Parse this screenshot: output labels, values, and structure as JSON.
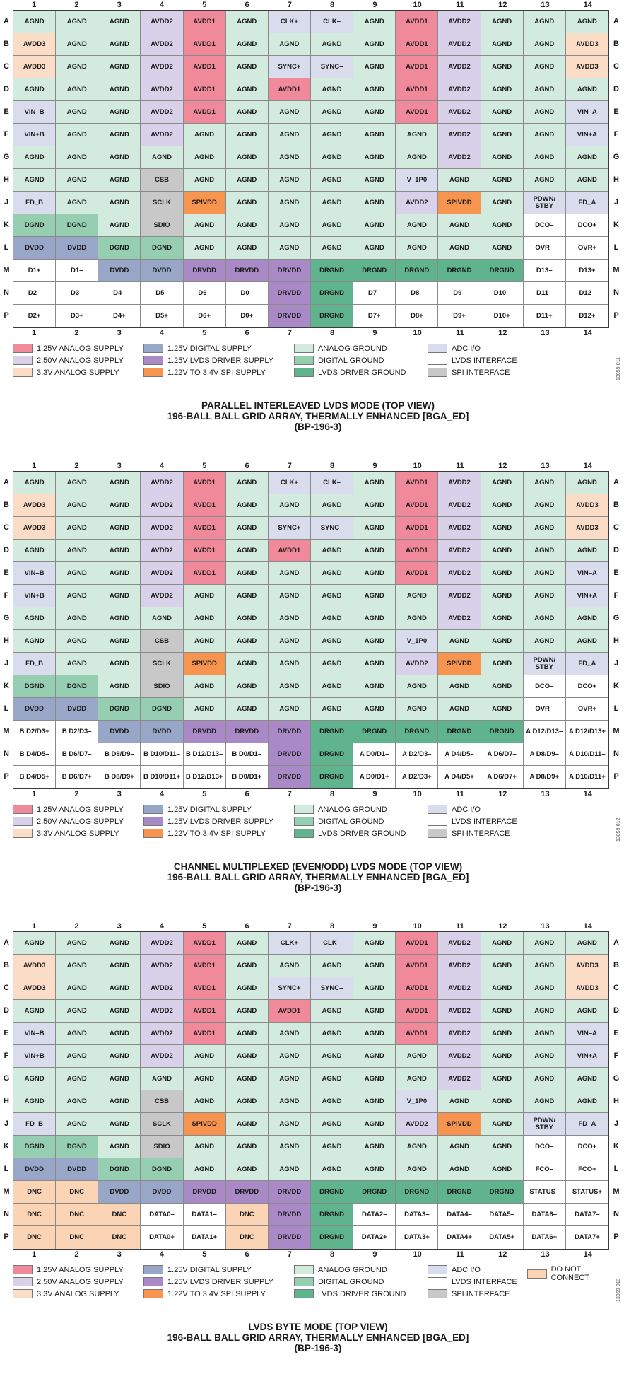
{
  "columns": [
    "1",
    "2",
    "3",
    "4",
    "5",
    "6",
    "7",
    "8",
    "9",
    "10",
    "11",
    "12",
    "13",
    "14"
  ],
  "rows": [
    "A",
    "B",
    "C",
    "D",
    "E",
    "F",
    "G",
    "H",
    "J",
    "K",
    "L",
    "M",
    "N",
    "P"
  ],
  "colors": {
    "A1": "#f08a9a",
    "A2": "#d9d0ea",
    "A3": "#fbdcc6",
    "D1": "#98a6c8",
    "D2": "#a98ac6",
    "SP": "#f7944f",
    "AG": "#d3ebde",
    "DG": "#96ceb2",
    "LG": "#5fb48d",
    "IO": "#d9dcec",
    "LV": "#ffffff",
    "SI": "#c8c8c8",
    "NC": "#fbd3b5"
  },
  "legend_items": [
    {
      "key": "A1",
      "label": "1.25V ANALOG SUPPLY"
    },
    {
      "key": "A2",
      "label": "2.50V ANALOG SUPPLY"
    },
    {
      "key": "A3",
      "label": "3.3V ANALOG SUPPLY"
    },
    {
      "key": "D1",
      "label": "1.25V DIGITAL SUPPLY"
    },
    {
      "key": "D2",
      "label": "1.25V LVDS DRIVER SUPPLY"
    },
    {
      "key": "SP",
      "label": "1.22V TO 3.4V SPI SUPPLY"
    },
    {
      "key": "AG",
      "label": "ANALOG GROUND"
    },
    {
      "key": "DG",
      "label": "DIGITAL GROUND"
    },
    {
      "key": "LG",
      "label": "LVDS DRIVER GROUND"
    },
    {
      "key": "IO",
      "label": "ADC I/O"
    },
    {
      "key": "LV",
      "label": "LVDS INTERFACE"
    },
    {
      "key": "SI",
      "label": "SPI INTERFACE"
    },
    {
      "key": "NC",
      "label": "DO NOT CONNECT"
    }
  ],
  "common_rows": [
    [
      [
        "AGND",
        "AG"
      ],
      [
        "AGND",
        "AG"
      ],
      [
        "AGND",
        "AG"
      ],
      [
        "AVDD2",
        "A2"
      ],
      [
        "AVDD1",
        "A1"
      ],
      [
        "AGND",
        "AG"
      ],
      [
        "CLK+",
        "IO"
      ],
      [
        "CLK–",
        "IO"
      ],
      [
        "AGND",
        "AG"
      ],
      [
        "AVDD1",
        "A1"
      ],
      [
        "AVDD2",
        "A2"
      ],
      [
        "AGND",
        "AG"
      ],
      [
        "AGND",
        "AG"
      ],
      [
        "AGND",
        "AG"
      ]
    ],
    [
      [
        "AVDD3",
        "A3"
      ],
      [
        "AGND",
        "AG"
      ],
      [
        "AGND",
        "AG"
      ],
      [
        "AVDD2",
        "A2"
      ],
      [
        "AVDD1",
        "A1"
      ],
      [
        "AGND",
        "AG"
      ],
      [
        "AGND",
        "AG"
      ],
      [
        "AGND",
        "AG"
      ],
      [
        "AGND",
        "AG"
      ],
      [
        "AVDD1",
        "A1"
      ],
      [
        "AVDD2",
        "A2"
      ],
      [
        "AGND",
        "AG"
      ],
      [
        "AGND",
        "AG"
      ],
      [
        "AVDD3",
        "A3"
      ]
    ],
    [
      [
        "AVDD3",
        "A3"
      ],
      [
        "AGND",
        "AG"
      ],
      [
        "AGND",
        "AG"
      ],
      [
        "AVDD2",
        "A2"
      ],
      [
        "AVDD1",
        "A1"
      ],
      [
        "AGND",
        "AG"
      ],
      [
        "SYNC+",
        "IO"
      ],
      [
        "SYNC–",
        "IO"
      ],
      [
        "AGND",
        "AG"
      ],
      [
        "AVDD1",
        "A1"
      ],
      [
        "AVDD2",
        "A2"
      ],
      [
        "AGND",
        "AG"
      ],
      [
        "AGND",
        "AG"
      ],
      [
        "AVDD3",
        "A3"
      ]
    ],
    [
      [
        "AGND",
        "AG"
      ],
      [
        "AGND",
        "AG"
      ],
      [
        "AGND",
        "AG"
      ],
      [
        "AVDD2",
        "A2"
      ],
      [
        "AVDD1",
        "A1"
      ],
      [
        "AGND",
        "AG"
      ],
      [
        "AVDD1",
        "A1"
      ],
      [
        "AGND",
        "AG"
      ],
      [
        "AGND",
        "AG"
      ],
      [
        "AVDD1",
        "A1"
      ],
      [
        "AVDD2",
        "A2"
      ],
      [
        "AGND",
        "AG"
      ],
      [
        "AGND",
        "AG"
      ],
      [
        "AGND",
        "AG"
      ]
    ],
    [
      [
        "VIN–B",
        "IO"
      ],
      [
        "AGND",
        "AG"
      ],
      [
        "AGND",
        "AG"
      ],
      [
        "AVDD2",
        "A2"
      ],
      [
        "AVDD1",
        "A1"
      ],
      [
        "AGND",
        "AG"
      ],
      [
        "AGND",
        "AG"
      ],
      [
        "AGND",
        "AG"
      ],
      [
        "AGND",
        "AG"
      ],
      [
        "AVDD1",
        "A1"
      ],
      [
        "AVDD2",
        "A2"
      ],
      [
        "AGND",
        "AG"
      ],
      [
        "AGND",
        "AG"
      ],
      [
        "VIN–A",
        "IO"
      ]
    ],
    [
      [
        "VIN+B",
        "IO"
      ],
      [
        "AGND",
        "AG"
      ],
      [
        "AGND",
        "AG"
      ],
      [
        "AVDD2",
        "A2"
      ],
      [
        "AGND",
        "AG"
      ],
      [
        "AGND",
        "AG"
      ],
      [
        "AGND",
        "AG"
      ],
      [
        "AGND",
        "AG"
      ],
      [
        "AGND",
        "AG"
      ],
      [
        "AGND",
        "AG"
      ],
      [
        "AVDD2",
        "A2"
      ],
      [
        "AGND",
        "AG"
      ],
      [
        "AGND",
        "AG"
      ],
      [
        "VIN+A",
        "IO"
      ]
    ],
    [
      [
        "AGND",
        "AG"
      ],
      [
        "AGND",
        "AG"
      ],
      [
        "AGND",
        "AG"
      ],
      [
        "AGND",
        "AG"
      ],
      [
        "AGND",
        "AG"
      ],
      [
        "AGND",
        "AG"
      ],
      [
        "AGND",
        "AG"
      ],
      [
        "AGND",
        "AG"
      ],
      [
        "AGND",
        "AG"
      ],
      [
        "AGND",
        "AG"
      ],
      [
        "AVDD2",
        "A2"
      ],
      [
        "AGND",
        "AG"
      ],
      [
        "AGND",
        "AG"
      ],
      [
        "AGND",
        "AG"
      ]
    ],
    [
      [
        "AGND",
        "AG"
      ],
      [
        "AGND",
        "AG"
      ],
      [
        "AGND",
        "AG"
      ],
      [
        "CSB",
        "SI"
      ],
      [
        "AGND",
        "AG"
      ],
      [
        "AGND",
        "AG"
      ],
      [
        "AGND",
        "AG"
      ],
      [
        "AGND",
        "AG"
      ],
      [
        "AGND",
        "AG"
      ],
      [
        "V_1P0",
        "IO"
      ],
      [
        "AGND",
        "AG"
      ],
      [
        "AGND",
        "AG"
      ],
      [
        "AGND",
        "AG"
      ],
      [
        "AGND",
        "AG"
      ]
    ],
    [
      [
        "FD_B",
        "IO"
      ],
      [
        "AGND",
        "AG"
      ],
      [
        "AGND",
        "AG"
      ],
      [
        "SCLK",
        "SI"
      ],
      [
        "SPIVDD",
        "SP"
      ],
      [
        "AGND",
        "AG"
      ],
      [
        "AGND",
        "AG"
      ],
      [
        "AGND",
        "AG"
      ],
      [
        "AGND",
        "AG"
      ],
      [
        "AVDD2",
        "A2"
      ],
      [
        "SPIVDD",
        "SP"
      ],
      [
        "AGND",
        "AG"
      ],
      [
        "PDWN/\nSTBY",
        "IO"
      ],
      [
        "FD_A",
        "IO"
      ]
    ],
    [
      [
        "DGND",
        "DG"
      ],
      [
        "DGND",
        "DG"
      ],
      [
        "AGND",
        "AG"
      ],
      [
        "SDIO",
        "SI"
      ],
      [
        "AGND",
        "AG"
      ],
      [
        "AGND",
        "AG"
      ],
      [
        "AGND",
        "AG"
      ],
      [
        "AGND",
        "AG"
      ],
      [
        "AGND",
        "AG"
      ],
      [
        "AGND",
        "AG"
      ],
      [
        "AGND",
        "AG"
      ],
      [
        "AGND",
        "AG"
      ]
    ],
    [
      [
        "DVDD",
        "D1"
      ],
      [
        "DVDD",
        "D1"
      ],
      [
        "DGND",
        "DG"
      ],
      [
        "DGND",
        "DG"
      ],
      [
        "AGND",
        "AG"
      ],
      [
        "AGND",
        "AG"
      ],
      [
        "AGND",
        "AG"
      ],
      [
        "AGND",
        "AG"
      ],
      [
        "AGND",
        "AG"
      ],
      [
        "AGND",
        "AG"
      ],
      [
        "AGND",
        "AG"
      ],
      [
        "AGND",
        "AG"
      ]
    ]
  ],
  "figures": [
    {
      "title": [
        "PARALLEL INTERLEAVED LVDS MODE (TOP VIEW)",
        "196-BALL BALL GRID ARRAY, THERMALLY ENHANCED [BGA_ED]",
        "(BP-196-3)"
      ],
      "fignum": "13059-011",
      "k_tail": [
        [
          "DCO–",
          "LV"
        ],
        [
          "DCO+",
          "LV"
        ]
      ],
      "l_tail": [
        [
          "OVR–",
          "LV"
        ],
        [
          "OVR+",
          "LV"
        ]
      ],
      "bottom_rows": [
        [
          [
            "D1+",
            "LV"
          ],
          [
            "D1–",
            "LV"
          ],
          [
            "DVDD",
            "D1"
          ],
          [
            "DVDD",
            "D1"
          ],
          [
            "DRVDD",
            "D2"
          ],
          [
            "DRVDD",
            "D2"
          ],
          [
            "DRVDD",
            "D2"
          ],
          [
            "DRGND",
            "LG"
          ],
          [
            "DRGND",
            "LG"
          ],
          [
            "DRGND",
            "LG"
          ],
          [
            "DRGND",
            "LG"
          ],
          [
            "DRGND",
            "LG"
          ],
          [
            "D13–",
            "LV"
          ],
          [
            "D13+",
            "LV"
          ]
        ],
        [
          [
            "D2–",
            "LV"
          ],
          [
            "D3–",
            "LV"
          ],
          [
            "D4–",
            "LV"
          ],
          [
            "D5–",
            "LV"
          ],
          [
            "D6–",
            "LV"
          ],
          [
            "D0–",
            "LV"
          ],
          [
            "DRVDD",
            "D2"
          ],
          [
            "DRGND",
            "LG"
          ],
          [
            "D7–",
            "LV"
          ],
          [
            "D8–",
            "LV"
          ],
          [
            "D9–",
            "LV"
          ],
          [
            "D10–",
            "LV"
          ],
          [
            "D11–",
            "LV"
          ],
          [
            "D12–",
            "LV"
          ]
        ],
        [
          [
            "D2+",
            "LV"
          ],
          [
            "D3+",
            "LV"
          ],
          [
            "D4+",
            "LV"
          ],
          [
            "D5+",
            "LV"
          ],
          [
            "D6+",
            "LV"
          ],
          [
            "D0+",
            "LV"
          ],
          [
            "DRVDD",
            "D2"
          ],
          [
            "DRGND",
            "LG"
          ],
          [
            "D7+",
            "LV"
          ],
          [
            "D8+",
            "LV"
          ],
          [
            "D9+",
            "LV"
          ],
          [
            "D10+",
            "LV"
          ],
          [
            "D11+",
            "LV"
          ],
          [
            "D12+",
            "LV"
          ]
        ]
      ],
      "show_dnc": false
    },
    {
      "title": [
        "CHANNEL MULTIPLEXED (EVEN/ODD) LVDS MODE (TOP VIEW)",
        "196-BALL BALL GRID ARRAY, THERMALLY ENHANCED [BGA_ED]",
        "(BP-196-3)"
      ],
      "fignum": "13059-012",
      "k_tail": [
        [
          "DCO–",
          "LV"
        ],
        [
          "DCO+",
          "LV"
        ]
      ],
      "l_tail": [
        [
          "OVR–",
          "LV"
        ],
        [
          "OVR+",
          "LV"
        ]
      ],
      "bottom_rows": [
        [
          [
            "B D2/D3+",
            "LV"
          ],
          [
            "B D2/D3–",
            "LV"
          ],
          [
            "DVDD",
            "D1"
          ],
          [
            "DVDD",
            "D1"
          ],
          [
            "DRVDD",
            "D2"
          ],
          [
            "DRVDD",
            "D2"
          ],
          [
            "DRVDD",
            "D2"
          ],
          [
            "DRGND",
            "LG"
          ],
          [
            "DRGND",
            "LG"
          ],
          [
            "DRGND",
            "LG"
          ],
          [
            "DRGND",
            "LG"
          ],
          [
            "DRGND",
            "LG"
          ],
          [
            "A D12/D13–",
            "LV"
          ],
          [
            "A D12/D13+",
            "LV"
          ]
        ],
        [
          [
            "B D4/D5–",
            "LV"
          ],
          [
            "B D6/D7–",
            "LV"
          ],
          [
            "B D8/D9–",
            "LV"
          ],
          [
            "B D10/D11–",
            "LV"
          ],
          [
            "B D12/D13–",
            "LV"
          ],
          [
            "B D0/D1–",
            "LV"
          ],
          [
            "DRVDD",
            "D2"
          ],
          [
            "DRGND",
            "LG"
          ],
          [
            "A D0/D1–",
            "LV"
          ],
          [
            "A D2/D3–",
            "LV"
          ],
          [
            "A D4/D5–",
            "LV"
          ],
          [
            "A D6/D7–",
            "LV"
          ],
          [
            "A D8/D9–",
            "LV"
          ],
          [
            "A D10/D11–",
            "LV"
          ]
        ],
        [
          [
            "B D4/D5+",
            "LV"
          ],
          [
            "B D6/D7+",
            "LV"
          ],
          [
            "B D8/D9+",
            "LV"
          ],
          [
            "B D10/D11+",
            "LV"
          ],
          [
            "B D12/D13+",
            "LV"
          ],
          [
            "B D0/D1+",
            "LV"
          ],
          [
            "DRVDD",
            "D2"
          ],
          [
            "DRGND",
            "LG"
          ],
          [
            "A D0/D1+",
            "LV"
          ],
          [
            "A D2/D3+",
            "LV"
          ],
          [
            "A D4/D5+",
            "LV"
          ],
          [
            "A D6/D7+",
            "LV"
          ],
          [
            "A D8/D9+",
            "LV"
          ],
          [
            "A D10/D11+",
            "LV"
          ]
        ]
      ],
      "show_dnc": false
    },
    {
      "title": [
        "LVDS BYTE MODE (TOP VIEW)",
        "196-BALL BALL GRID ARRAY, THERMALLY ENHANCED [BGA_ED]",
        "(BP-196-3)"
      ],
      "fignum": "13059-013",
      "k_tail": [
        [
          "DCO–",
          "LV"
        ],
        [
          "DCO+",
          "LV"
        ]
      ],
      "l_tail": [
        [
          "FCO–",
          "LV"
        ],
        [
          "FCO+",
          "LV"
        ]
      ],
      "bottom_rows": [
        [
          [
            "DNC",
            "NC"
          ],
          [
            "DNC",
            "NC"
          ],
          [
            "DVDD",
            "D1"
          ],
          [
            "DVDD",
            "D1"
          ],
          [
            "DRVDD",
            "D2"
          ],
          [
            "DRVDD",
            "D2"
          ],
          [
            "DRVDD",
            "D2"
          ],
          [
            "DRGND",
            "LG"
          ],
          [
            "DRGND",
            "LG"
          ],
          [
            "DRGND",
            "LG"
          ],
          [
            "DRGND",
            "LG"
          ],
          [
            "DRGND",
            "LG"
          ],
          [
            "STATUS–",
            "LV"
          ],
          [
            "STATUS+",
            "LV"
          ]
        ],
        [
          [
            "DNC",
            "NC"
          ],
          [
            "DNC",
            "NC"
          ],
          [
            "DNC",
            "NC"
          ],
          [
            "DATA0–",
            "LV"
          ],
          [
            "DATA1–",
            "LV"
          ],
          [
            "DNC",
            "NC"
          ],
          [
            "DRVDD",
            "D2"
          ],
          [
            "DRGND",
            "LG"
          ],
          [
            "DATA2–",
            "LV"
          ],
          [
            "DATA3–",
            "LV"
          ],
          [
            "DATA4–",
            "LV"
          ],
          [
            "DATA5–",
            "LV"
          ],
          [
            "DATA6–",
            "LV"
          ],
          [
            "DATA7–",
            "LV"
          ]
        ],
        [
          [
            "DNC",
            "NC"
          ],
          [
            "DNC",
            "NC"
          ],
          [
            "DNC",
            "NC"
          ],
          [
            "DATA0+",
            "LV"
          ],
          [
            "DATA1+",
            "LV"
          ],
          [
            "DNC",
            "NC"
          ],
          [
            "DRVDD",
            "D2"
          ],
          [
            "DRGND",
            "LG"
          ],
          [
            "DATA2+",
            "LV"
          ],
          [
            "DATA3+",
            "LV"
          ],
          [
            "DATA4+",
            "LV"
          ],
          [
            "DATA5+",
            "LV"
          ],
          [
            "DATA6+",
            "LV"
          ],
          [
            "DATA7+",
            "LV"
          ]
        ]
      ],
      "show_dnc": true
    }
  ]
}
